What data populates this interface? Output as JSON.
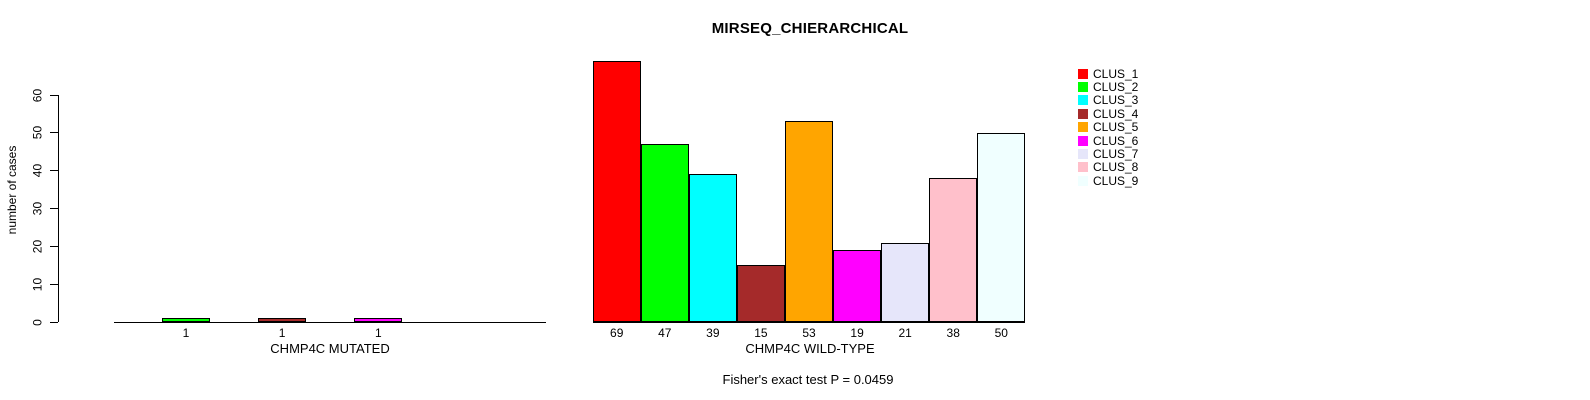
{
  "title": "MIRSEQ_CHIERARCHICAL",
  "y_axis": {
    "label": "number of cases",
    "ticks": [
      0,
      10,
      20,
      30,
      40,
      50,
      60
    ]
  },
  "panels": [
    {
      "xlabel": "CHMP4C MUTATED",
      "bars": [
        {
          "cluster": "CLUS_2",
          "value": 1,
          "slot": 2
        },
        {
          "cluster": "CLUS_4",
          "value": 1,
          "slot": 4
        },
        {
          "cluster": "CLUS_6",
          "value": 1,
          "slot": 6
        }
      ]
    },
    {
      "xlabel": "CHMP4C WILD-TYPE",
      "bars": [
        {
          "cluster": "CLUS_1",
          "value": 69,
          "slot": 1
        },
        {
          "cluster": "CLUS_2",
          "value": 47,
          "slot": 2
        },
        {
          "cluster": "CLUS_3",
          "value": 39,
          "slot": 3
        },
        {
          "cluster": "CLUS_4",
          "value": 15,
          "slot": 4
        },
        {
          "cluster": "CLUS_5",
          "value": 53,
          "slot": 5
        },
        {
          "cluster": "CLUS_6",
          "value": 19,
          "slot": 6
        },
        {
          "cluster": "CLUS_7",
          "value": 21,
          "slot": 7
        },
        {
          "cluster": "CLUS_8",
          "value": 38,
          "slot": 8
        },
        {
          "cluster": "CLUS_9",
          "value": 50,
          "slot": 9
        }
      ]
    }
  ],
  "legend": {
    "items": [
      {
        "label": "CLUS_1",
        "color": "#FF0000"
      },
      {
        "label": "CLUS_2",
        "color": "#00FF00"
      },
      {
        "label": "CLUS_3",
        "color": "#00FFFF"
      },
      {
        "label": "CLUS_4",
        "color": "#A52A2A"
      },
      {
        "label": "CLUS_5",
        "color": "#FFA500"
      },
      {
        "label": "CLUS_6",
        "color": "#FF00FF"
      },
      {
        "label": "CLUS_7",
        "color": "#E6E6FA"
      },
      {
        "label": "CLUS_8",
        "color": "#FFC0CB"
      },
      {
        "label": "CLUS_9",
        "color": "#F0FFFF"
      }
    ]
  },
  "footer": "Fisher's exact test P = 0.0459",
  "chart_data": {
    "type": "bar",
    "title": "MIRSEQ_CHIERARCHICAL",
    "xlabel": "",
    "ylabel": "number of cases",
    "ylim": [
      0,
      60
    ],
    "yticks": [
      0,
      10,
      20,
      30,
      40,
      50,
      60
    ],
    "categories": [
      "CLUS_1",
      "CLUS_2",
      "CLUS_3",
      "CLUS_4",
      "CLUS_5",
      "CLUS_6",
      "CLUS_7",
      "CLUS_8",
      "CLUS_9"
    ],
    "colors": [
      "#FF0000",
      "#00FF00",
      "#00FFFF",
      "#A52A2A",
      "#FFA500",
      "#FF00FF",
      "#E6E6FA",
      "#FFC0CB",
      "#F0FFFF"
    ],
    "series": [
      {
        "name": "CHMP4C MUTATED",
        "values": [
          0,
          1,
          0,
          1,
          0,
          1,
          0,
          0,
          0
        ]
      },
      {
        "name": "CHMP4C WILD-TYPE",
        "values": [
          69,
          47,
          39,
          15,
          53,
          19,
          21,
          38,
          50
        ]
      }
    ],
    "bar_value_labels_shown": true,
    "annotation": "Fisher's exact test P = 0.0459",
    "legend_position": "top-right",
    "grid": false
  }
}
